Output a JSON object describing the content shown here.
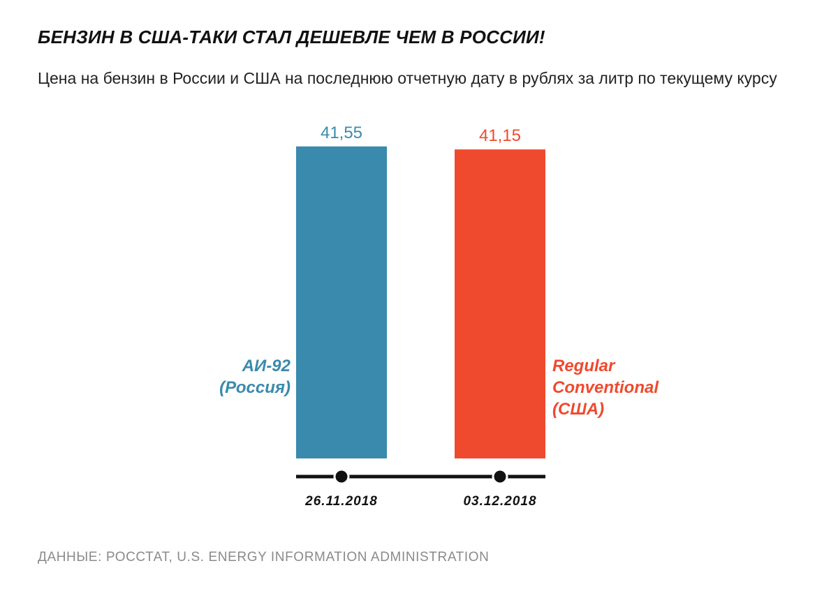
{
  "title": "БЕНЗИН В США-ТАКИ СТАЛ ДЕШЕВЛЕ ЧЕМ В РОССИИ!",
  "subtitle": "Цена на бензин в России и США на последнюю отчетную дату в рублях за литр по текущему курсу",
  "source": "ДАННЫЕ: РОССТАТ, U.S. ENERGY INFORMATION ADMINISTRATION",
  "colors": {
    "russia": "#3a8aad",
    "usa": "#ef4a2d",
    "axis": "#111111"
  },
  "chart_data": {
    "type": "bar",
    "categories": [
      "26.11.2018",
      "03.12.2018"
    ],
    "values": [
      41.55,
      41.15
    ],
    "value_labels": [
      "41,55",
      "41,15"
    ],
    "bar_labels": [
      [
        "АИ-92",
        "(Россия)"
      ],
      [
        "Regular",
        "Conventional",
        "(США)"
      ]
    ],
    "ylim": [
      0,
      42
    ]
  }
}
